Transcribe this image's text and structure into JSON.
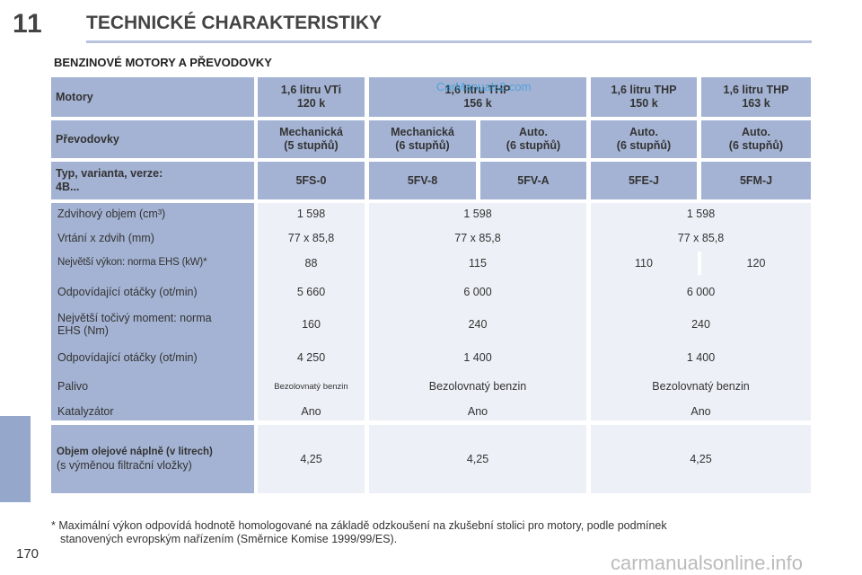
{
  "chapter_number": "11",
  "title": "TECHNICKÉ CHARAKTERISTIKY",
  "section_title": "BENZINOVÉ MOTORY A PŘEVODOVKY",
  "watermark_top": "CarManuals2.com",
  "header": {
    "motory_label": "Motory",
    "motory": [
      "1,6 litru VTi\n120 k",
      "1,6 litru THP\n156 k",
      "1,6 litru THP\n150 k",
      "1,6 litru THP\n163 k"
    ],
    "prevodovky_label": "Převodovky",
    "prevodovky": [
      "Mechanická\n(5 stupňů)",
      "Mechanická\n(6 stupňů)",
      "Auto.\n(6 stupňů)",
      "Auto.\n(6 stupňů)",
      "Auto.\n(6 stupňů)"
    ],
    "typ_label": "Typ, varianta, verze:\n4B...",
    "typ": [
      "5FS-0",
      "5FV-8",
      "5FV-A",
      "5FE-J",
      "5FM-J"
    ]
  },
  "rows": {
    "objem_label": "Zdvihový objem (cm³)",
    "objem": [
      "1 598",
      "1 598",
      "1 598"
    ],
    "vrtani_label": "Vrtání x zdvih (mm)",
    "vrtani": [
      "77 x 85,8",
      "77 x 85,8",
      "77 x 85,8"
    ],
    "vykon_label": "Největší výkon: norma EHS (kW)*",
    "vykon": [
      "88",
      "115",
      "110",
      "120"
    ],
    "otacky1_label": "Odpovídající otáčky (ot/min)",
    "otacky1": [
      "5 660",
      "6 000",
      "6 000"
    ],
    "moment_label": "Největší točivý moment: norma\nEHS (Nm)",
    "moment": [
      "160",
      "240",
      "240"
    ],
    "otacky2_label": "Odpovídající otáčky (ot/min)",
    "otacky2": [
      "4 250",
      "1 400",
      "1 400"
    ],
    "palivo_label": "Palivo",
    "palivo": [
      "Bezolovnatý benzin",
      "Bezolovnatý benzin",
      "Bezolovnatý benzin"
    ],
    "katalyzator_label": "Katalyzátor",
    "katalyzator": [
      "Ano",
      "Ano",
      "Ano"
    ]
  },
  "oil": {
    "label_bold": "Objem olejové náplně (v litrech)",
    "label_sub": "(s výměnou filtrační vložky)",
    "values": [
      "4,25",
      "4,25",
      "4,25"
    ]
  },
  "footnote_line1": "* Maximální výkon odpovídá hodnotě homologované na základě odzkoušení na zkušební stolici pro motory, podle podmínek",
  "footnote_line2": "stanovených evropským nařízením (Směrnice Komise 1999/99/ES).",
  "page_number": "170",
  "watermark_bottom": "carmanualsonline.info"
}
